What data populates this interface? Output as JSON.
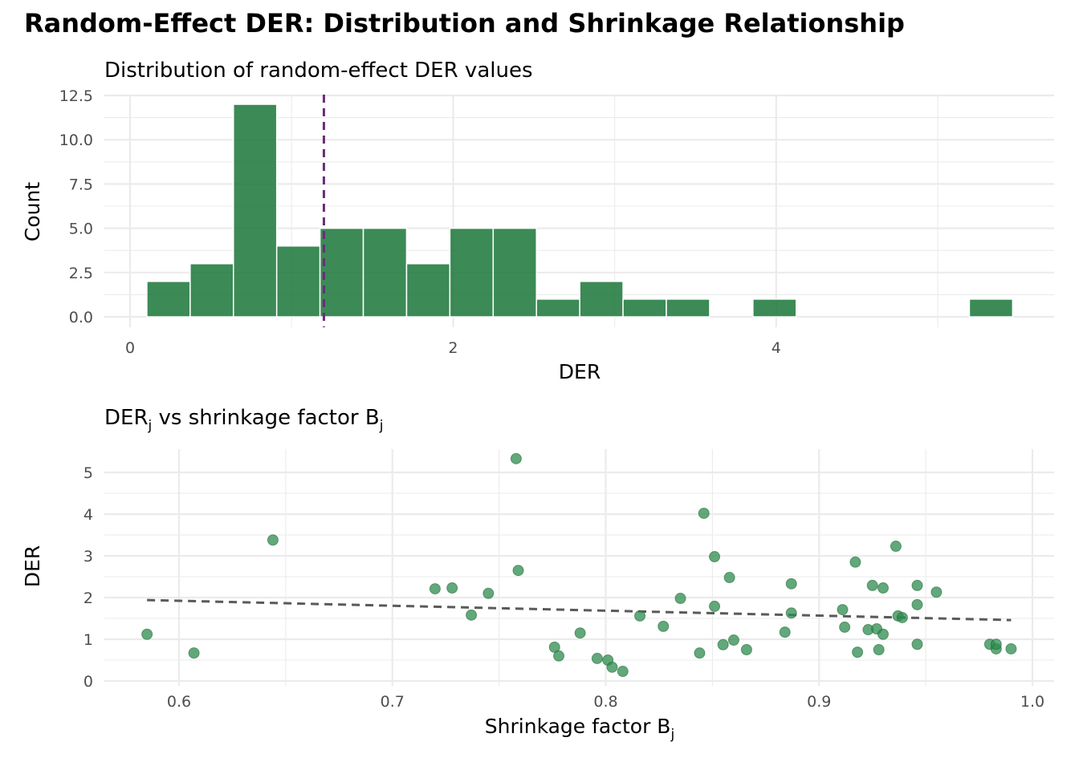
{
  "title": "Random-Effect DER: Distribution and Shrinkage Relationship",
  "colors": {
    "bar": "#1a7538",
    "point": "#2e8b4e",
    "mean_line": "#6a2c7a",
    "trend_line": "#5a5a5a"
  },
  "chart_data": [
    {
      "type": "bar",
      "subtitle": "Distribution of random-effect DER values",
      "xlabel": "DER",
      "ylabel": "Count",
      "xlim": [
        -0.1,
        5.7
      ],
      "ylim": [
        0,
        12.5
      ],
      "xticks": [
        0,
        2,
        4
      ],
      "xtick_labels": [
        "0",
        "2",
        "4"
      ],
      "yticks": [
        0,
        2.5,
        5,
        7.5,
        10,
        12.5
      ],
      "ytick_labels": [
        "0.0",
        "2.5",
        "5.0",
        "7.5",
        "10.0",
        "12.5"
      ],
      "grid": true,
      "bin_start": 0.104,
      "bin_width": 0.268,
      "counts": [
        2,
        3,
        12,
        4,
        5,
        5,
        3,
        5,
        5,
        1,
        2,
        1,
        1,
        0,
        1,
        0,
        0,
        0,
        0,
        1
      ],
      "vline": {
        "x": 1.2,
        "style": "dashed"
      }
    },
    {
      "type": "scatter",
      "subtitle": {
        "text": "DER",
        "sub1": "j",
        "mid": " vs shrinkage factor B",
        "sub2": "j"
      },
      "xlabel": {
        "text": "Shrinkage factor B",
        "sub": "j"
      },
      "ylabel": "DER",
      "xlim": [
        0.565,
        1.01
      ],
      "ylim": [
        0,
        5.5
      ],
      "xticks": [
        0.6,
        0.7,
        0.8,
        0.9,
        1.0
      ],
      "xtick_labels": [
        "0.6",
        "0.7",
        "0.8",
        "0.9",
        "1.0"
      ],
      "yticks": [
        0,
        1,
        2,
        3,
        4,
        5
      ],
      "ytick_labels": [
        "0",
        "1",
        "2",
        "3",
        "4",
        "5"
      ],
      "grid": true,
      "points": [
        [
          0.585,
          1.12
        ],
        [
          0.607,
          0.67
        ],
        [
          0.644,
          3.38
        ],
        [
          0.72,
          2.21
        ],
        [
          0.728,
          2.23
        ],
        [
          0.745,
          2.1
        ],
        [
          0.737,
          1.58
        ],
        [
          0.758,
          5.33
        ],
        [
          0.759,
          2.65
        ],
        [
          0.776,
          0.81
        ],
        [
          0.778,
          0.6
        ],
        [
          0.788,
          1.15
        ],
        [
          0.796,
          0.54
        ],
        [
          0.801,
          0.5
        ],
        [
          0.803,
          0.33
        ],
        [
          0.808,
          0.23
        ],
        [
          0.816,
          1.56
        ],
        [
          0.827,
          1.31
        ],
        [
          0.835,
          1.98
        ],
        [
          0.844,
          0.67
        ],
        [
          0.846,
          4.02
        ],
        [
          0.851,
          2.98
        ],
        [
          0.851,
          1.79
        ],
        [
          0.855,
          0.87
        ],
        [
          0.858,
          2.48
        ],
        [
          0.86,
          0.98
        ],
        [
          0.866,
          0.75
        ],
        [
          0.884,
          1.17
        ],
        [
          0.887,
          2.33
        ],
        [
          0.887,
          1.63
        ],
        [
          0.911,
          1.71
        ],
        [
          0.912,
          1.29
        ],
        [
          0.917,
          2.85
        ],
        [
          0.918,
          0.69
        ],
        [
          0.923,
          1.23
        ],
        [
          0.925,
          2.29
        ],
        [
          0.927,
          1.25
        ],
        [
          0.928,
          0.75
        ],
        [
          0.93,
          2.23
        ],
        [
          0.93,
          1.12
        ],
        [
          0.936,
          3.23
        ],
        [
          0.937,
          1.56
        ],
        [
          0.939,
          1.52
        ],
        [
          0.946,
          2.29
        ],
        [
          0.946,
          1.83
        ],
        [
          0.946,
          0.88
        ],
        [
          0.955,
          2.13
        ],
        [
          0.98,
          0.88
        ],
        [
          0.983,
          0.77
        ],
        [
          0.983,
          0.88
        ],
        [
          0.99,
          0.77
        ]
      ],
      "trend_line": {
        "x": [
          0.585,
          0.99
        ],
        "y": [
          1.94,
          1.46
        ],
        "style": "dashed"
      }
    }
  ]
}
